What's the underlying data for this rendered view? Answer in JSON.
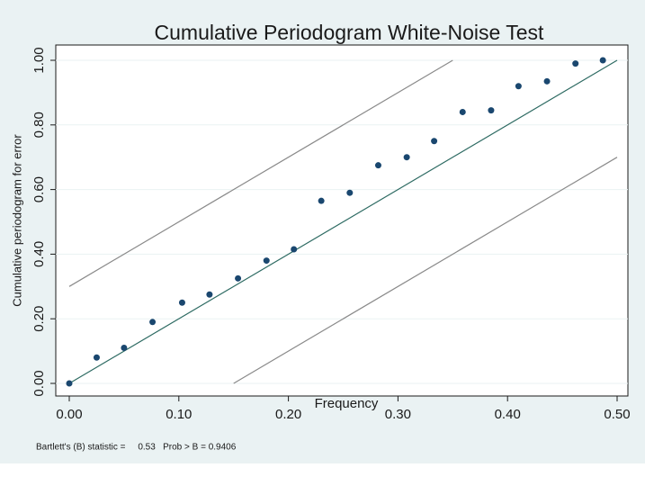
{
  "chart_data": {
    "type": "scatter",
    "title": "Cumulative Periodogram White-Noise Test",
    "xlabel": "Frequency",
    "ylabel": "Cumulative periodogram for error",
    "note": "Bartlett's (B) statistic =     0.53   Prob > B = 0.9406",
    "xlim": [
      0,
      0.5
    ],
    "ylim": [
      0,
      1
    ],
    "xticks": [
      {
        "value": 0,
        "label": "0.00"
      },
      {
        "value": 0.1,
        "label": "0.10"
      },
      {
        "value": 0.2,
        "label": "0.20"
      },
      {
        "value": 0.3,
        "label": "0.30"
      },
      {
        "value": 0.4,
        "label": "0.40"
      },
      {
        "value": 0.5,
        "label": "0.50"
      }
    ],
    "yticks": [
      {
        "value": 0,
        "label": "0.00"
      },
      {
        "value": 0.2,
        "label": "0.20"
      },
      {
        "value": 0.4,
        "label": "0.40"
      },
      {
        "value": 0.6,
        "label": "0.60"
      },
      {
        "value": 0.8,
        "label": "0.80"
      },
      {
        "value": 1,
        "label": "1.00"
      }
    ],
    "grid": true,
    "series": [
      {
        "color": "#1a476f",
        "x": [
          0,
          0.025,
          0.05,
          0.076,
          0.103,
          0.128,
          0.154,
          0.18,
          0.205,
          0.23,
          0.256,
          0.282,
          0.308,
          0.333,
          0.359,
          0.385,
          0.41,
          0.436,
          0.462,
          0.487
        ],
        "values": [
          0,
          0.08,
          0.11,
          0.19,
          0.25,
          0.275,
          0.325,
          0.38,
          0.415,
          0.565,
          0.59,
          0.675,
          0.7,
          0.75,
          0.84,
          0.845,
          0.92,
          0.935,
          0.99,
          1.0
        ]
      }
    ],
    "lines": [
      {
        "color": "#2e6b63",
        "x": [
          0,
          0.5
        ],
        "y": [
          0,
          1
        ]
      },
      {
        "color": "#8a8a8a",
        "x": [
          0,
          0.35
        ],
        "y": [
          0.3,
          1
        ]
      },
      {
        "color": "#8a8a8a",
        "x": [
          0.15,
          0.5
        ],
        "y": [
          0,
          0.7
        ]
      }
    ]
  }
}
